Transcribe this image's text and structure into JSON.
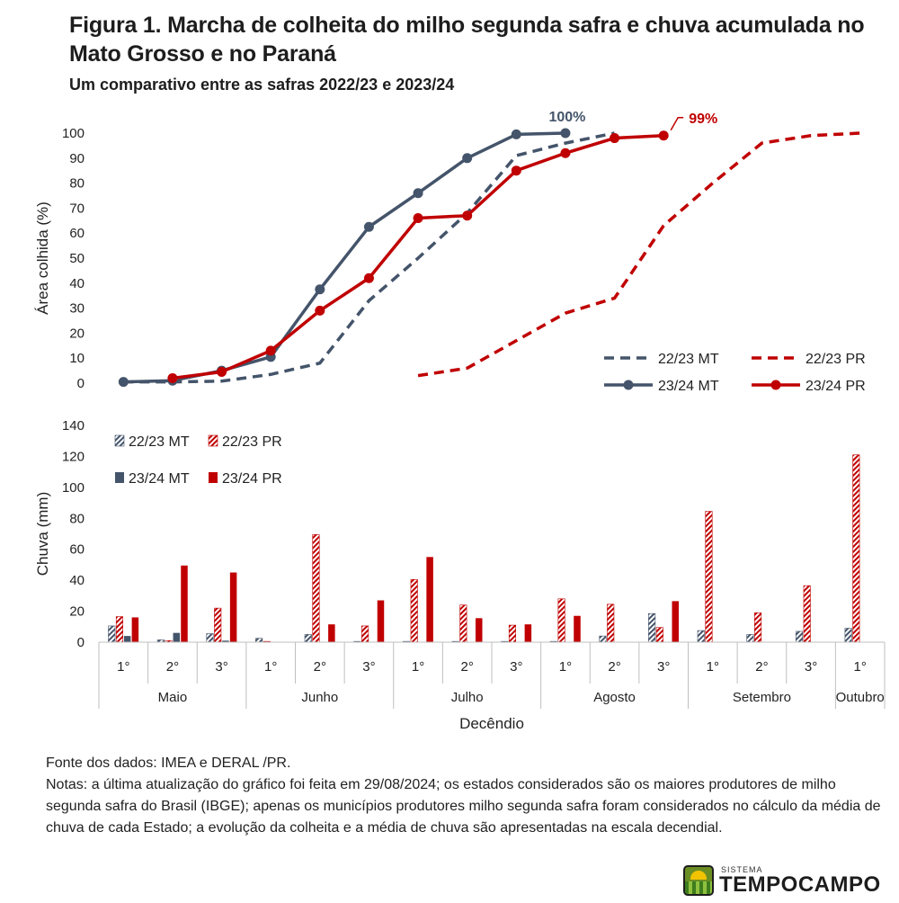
{
  "title": "Figura 1. Marcha de colheita do milho segunda safra e chuva acumulada no Mato Grosso e no Paraná",
  "subtitle": "Um comparativo entre as safras 2022/23 e 2023/24",
  "notes": {
    "source": "Fonte dos dados: IMEA e DERAL /PR.",
    "text": "Notas: a última atualização do gráfico foi feita em 29/08/2024; os estados considerados são os maiores produtores de milho segunda safra do Brasil (IBGE); apenas os municípios produtores milho segunda safra foram considerados no cálculo da média de chuva de cada Estado; a evolução da colheita e a média de chuva são apresentadas na escala decendial."
  },
  "logo": {
    "small": "SISTEMA",
    "text": "TEMPOCAMPO"
  },
  "colors": {
    "mt": "#44546a",
    "pr": "#c00000"
  },
  "chart_data": [
    {
      "type": "line",
      "ylabel": "Área colhida (%)",
      "ylim": [
        0,
        100
      ],
      "yticks": [
        "0",
        "10",
        "20",
        "30",
        "40",
        "50",
        "60",
        "70",
        "80",
        "90",
        "100"
      ],
      "x": [
        "Maio 1°",
        "Maio 2°",
        "Maio 3°",
        "Junho 1°",
        "Junho 2°",
        "Junho 3°",
        "Julho 1°",
        "Julho 2°",
        "Julho 3°",
        "Agosto 1°",
        "Agosto 2°",
        "Agosto 3°",
        "Setembro 1°",
        "Setembro 2°",
        "Setembro 3°",
        "Outubro 1°"
      ],
      "series": [
        {
          "name": "22/23 MT",
          "style": "dashed",
          "color": "#44546a",
          "values": [
            0.5,
            0.5,
            0.8,
            3.5,
            8,
            33,
            50,
            68,
            91,
            96,
            100,
            null,
            null,
            null,
            null,
            null
          ]
        },
        {
          "name": "22/23 PR",
          "style": "dashed",
          "color": "#c00000",
          "values": [
            null,
            null,
            null,
            null,
            null,
            null,
            3,
            6,
            17,
            28,
            34,
            63,
            80,
            96,
            99,
            100
          ]
        },
        {
          "name": "23/24 MT",
          "style": "solid-marker",
          "color": "#44546a",
          "values": [
            0.5,
            1,
            5,
            10.5,
            37.5,
            62.5,
            76,
            90,
            99.5,
            100,
            null,
            null,
            null,
            null,
            null,
            null
          ]
        },
        {
          "name": "23/24 PR",
          "style": "solid-marker",
          "color": "#c00000",
          "values": [
            null,
            2,
            4.5,
            13,
            29,
            42,
            66,
            67,
            85,
            92,
            98,
            99,
            null,
            null,
            null,
            null
          ]
        }
      ],
      "annotations": [
        {
          "text": "100%",
          "series": "23/24 MT",
          "x": "Agosto 1°",
          "color": "#44546a"
        },
        {
          "text": "99%",
          "series": "23/24 PR",
          "x": "Agosto 3°",
          "color": "#c00000"
        }
      ],
      "legend": "bottom-right"
    },
    {
      "type": "bar",
      "ylabel": "Chuva (mm)",
      "xlabel": "Decêndio",
      "ylim": [
        0,
        140
      ],
      "yticks": [
        "0",
        "20",
        "40",
        "60",
        "80",
        "100",
        "120",
        "140"
      ],
      "categories": [
        "1°",
        "2°",
        "3°",
        "1°",
        "2°",
        "3°",
        "1°",
        "2°",
        "3°",
        "1°",
        "2°",
        "3°",
        "1°",
        "2°",
        "3°",
        "1°"
      ],
      "months": [
        {
          "name": "Maio",
          "span": 3
        },
        {
          "name": "Junho",
          "span": 3
        },
        {
          "name": "Julho",
          "span": 3
        },
        {
          "name": "Agosto",
          "span": 3
        },
        {
          "name": "Setembro",
          "span": 3
        },
        {
          "name": "Outubro",
          "span": 1
        }
      ],
      "series": [
        {
          "name": "22/23 MT",
          "pattern": "hatched",
          "color": "#44546a",
          "values": [
            10.5,
            1.5,
            5.5,
            2.5,
            5,
            0.5,
            0.5,
            0.5,
            0.5,
            0.5,
            4,
            18.5,
            7.5,
            5,
            7,
            9
          ]
        },
        {
          "name": "22/23 PR",
          "pattern": "hatched",
          "color": "#c00000",
          "values": [
            16.5,
            1,
            22,
            0.5,
            69.5,
            10.5,
            40.5,
            24,
            11,
            28,
            24.5,
            9.5,
            84.5,
            19,
            36.5,
            121
          ]
        },
        {
          "name": "23/24 MT",
          "pattern": "solid",
          "color": "#44546a",
          "values": [
            4,
            6,
            1,
            0,
            0,
            0,
            0,
            0,
            0,
            0,
            0,
            0,
            null,
            null,
            null,
            null
          ]
        },
        {
          "name": "23/24 PR",
          "pattern": "solid",
          "color": "#c00000",
          "values": [
            16,
            49.5,
            45,
            0,
            11.5,
            27,
            55,
            15.5,
            11.5,
            17,
            0,
            26.5,
            null,
            null,
            null,
            null
          ]
        }
      ],
      "legend": "top-left"
    }
  ]
}
